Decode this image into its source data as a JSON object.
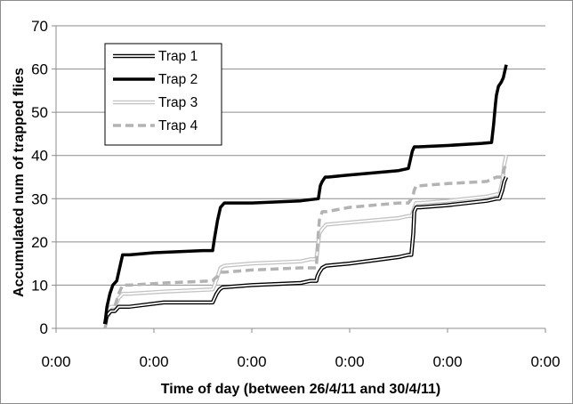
{
  "chart_data": {
    "type": "line",
    "title": "",
    "xlabel": "Time of day (between 26/4/11 and 30/4/11)",
    "ylabel": "Accumulated num of trapped flies",
    "ylim": [
      0,
      70
    ],
    "yticks": [
      0,
      10,
      20,
      30,
      40,
      50,
      60,
      70
    ],
    "xlim": [
      0,
      5
    ],
    "xtick_labels": [
      "0:00",
      "0:00",
      "0:00",
      "0:00",
      "0:00",
      "0:00"
    ],
    "grid": "horizontal",
    "legend_position": "top-left",
    "series": [
      {
        "name": "Trap 1",
        "style": "double-black",
        "x": [
          0.5,
          0.52,
          0.56,
          0.6,
          0.64,
          0.68,
          0.75,
          1.1,
          1.6,
          1.62,
          1.64,
          1.67,
          1.7,
          2.0,
          2.5,
          2.6,
          2.66,
          2.67,
          2.69,
          2.72,
          2.76,
          3.0,
          3.5,
          3.6,
          3.63,
          3.65,
          3.66,
          3.68,
          3.72,
          4.0,
          4.4,
          4.5,
          4.53,
          4.56,
          4.58,
          4.6
        ],
        "y": [
          1,
          3,
          4,
          4,
          5,
          5,
          5,
          6,
          6,
          7,
          8,
          9,
          9.5,
          10,
          10.5,
          11,
          11,
          12,
          13,
          14,
          14.5,
          15,
          16.5,
          17,
          17,
          22,
          27,
          28,
          28,
          28.5,
          29.5,
          30,
          30,
          32,
          34,
          35
        ]
      },
      {
        "name": "Trap 2",
        "style": "solid-black-thick",
        "x": [
          0.5,
          0.52,
          0.55,
          0.58,
          0.62,
          0.64,
          0.66,
          0.68,
          0.75,
          1.0,
          1.5,
          1.6,
          1.62,
          1.65,
          1.68,
          1.72,
          1.8,
          2.0,
          2.5,
          2.68,
          2.7,
          2.72,
          2.75,
          2.78,
          3.0,
          3.5,
          3.6,
          3.62,
          3.64,
          3.66,
          3.7,
          4.0,
          4.35,
          4.45,
          4.47,
          4.49,
          4.5,
          4.52,
          4.55,
          4.57,
          4.58,
          4.6
        ],
        "y": [
          1,
          5,
          8,
          10,
          11,
          13,
          15,
          17,
          17,
          17.5,
          18,
          18,
          21,
          25,
          28,
          29,
          29,
          29,
          29.5,
          30,
          33,
          34,
          35,
          35,
          35.5,
          36.5,
          37,
          39,
          41,
          42,
          42,
          42.3,
          42.8,
          43,
          47,
          52,
          54,
          56,
          57,
          58,
          59,
          61
        ]
      },
      {
        "name": "Trap 3",
        "style": "double-lightgray",
        "x": [
          0.5,
          0.52,
          0.56,
          0.6,
          0.64,
          0.68,
          0.75,
          1.1,
          1.6,
          1.62,
          1.65,
          1.68,
          1.72,
          2.0,
          2.5,
          2.6,
          2.66,
          2.67,
          2.69,
          2.72,
          2.76,
          3.0,
          3.5,
          3.6,
          3.63,
          3.65,
          3.66,
          3.68,
          3.72,
          4.0,
          4.4,
          4.5,
          4.53,
          4.56,
          4.58,
          4.6
        ],
        "y": [
          1,
          4,
          5,
          5,
          7,
          8,
          8,
          8.5,
          9,
          10,
          12,
          14,
          14.5,
          15,
          15.5,
          16,
          16,
          18,
          22,
          23,
          24,
          24.5,
          25.5,
          26,
          26,
          27,
          28,
          29,
          29,
          29.5,
          30.5,
          31,
          31,
          34,
          38,
          40
        ]
      },
      {
        "name": "Trap 4",
        "style": "dashed-gray",
        "x": [
          0.5,
          0.52,
          0.56,
          0.6,
          0.64,
          0.68,
          0.75,
          1.1,
          1.6,
          1.62,
          1.65,
          1.68,
          1.72,
          2.0,
          2.5,
          2.6,
          2.66,
          2.67,
          2.69,
          2.72,
          2.76,
          3.0,
          3.5,
          3.6,
          3.63,
          3.65,
          3.66,
          3.68,
          3.72,
          4.0,
          4.4,
          4.5,
          4.53,
          4.56,
          4.58,
          4.6
        ],
        "y": [
          0,
          2,
          4,
          5,
          8,
          10,
          10,
          10.5,
          11,
          11.5,
          12,
          13,
          13,
          13.5,
          14,
          14,
          14,
          19,
          25,
          27,
          27,
          28,
          29,
          29,
          30,
          31,
          32,
          33,
          33,
          33.5,
          34,
          35,
          35,
          35,
          37,
          38
        ]
      }
    ],
    "colors": {
      "trap1": "#000000",
      "trap2": "#000000",
      "trap3": "#bfbfbf",
      "trap4": "#b3b3b3",
      "grid": "#8c8c8c",
      "axis": "#8c8c8c"
    }
  }
}
